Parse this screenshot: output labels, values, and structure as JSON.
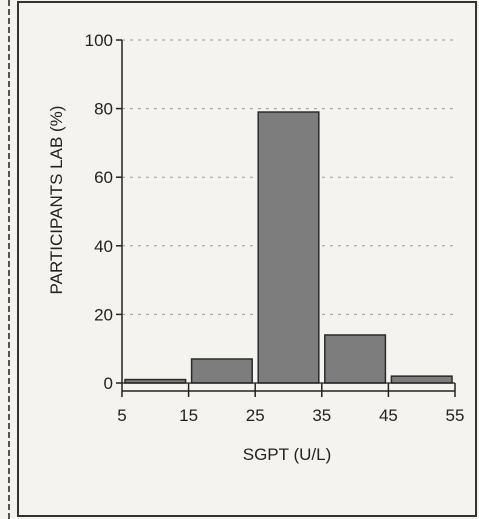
{
  "chart_data": {
    "type": "bar",
    "xlabel": "SGPT (U/L)",
    "ylabel": "PARTICIPANTS LAB  (%)",
    "bin_edges": [
      5,
      15,
      25,
      35,
      45,
      55
    ],
    "x_ticks": [
      "5",
      "15",
      "25",
      "35",
      "45",
      "55"
    ],
    "y_ticks": [
      "0",
      "20",
      "40",
      "60",
      "80",
      "100"
    ],
    "values": [
      1,
      7,
      79,
      14,
      2
    ],
    "ylim": [
      0,
      100
    ],
    "xlim": [
      5,
      55
    ],
    "grid": true,
    "colors": {
      "bar": "#7d7d7d",
      "bar_edge": "#2a2a2a",
      "axis": "#222222",
      "grid": "#9a9a9a",
      "frame": "#333333"
    }
  }
}
